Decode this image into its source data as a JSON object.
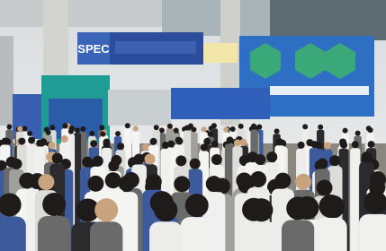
{
  "banner": {
    "text": "SPEC"
  }
}
